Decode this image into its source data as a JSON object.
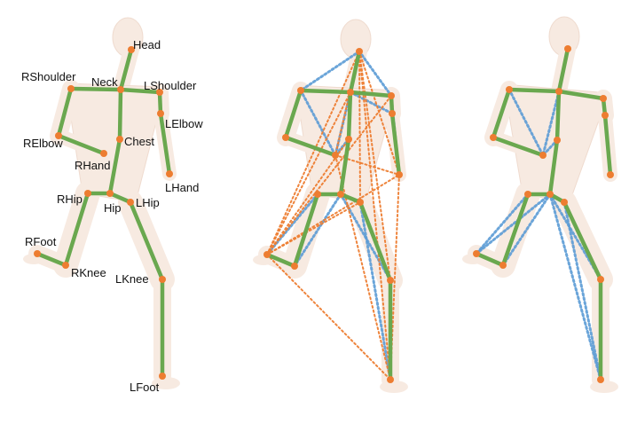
{
  "colors": {
    "bone": "#6aa84f",
    "joint": "#ed7d31",
    "edge_global": "#ed7d31",
    "edge_local": "#5b9bd5",
    "body": "#f1d9c9",
    "body_shade": "#e3bea8"
  },
  "labels": {
    "head": "Head",
    "neck": "Neck",
    "rshoulder": "RShoulder",
    "lshoulder": "LShoulder",
    "relbow": "RElbow",
    "lelbow": "LElbow",
    "chest": "Chest",
    "rhand": "RHand",
    "lhand": "LHand",
    "rhip": "RHip",
    "hip": "Hip",
    "lhip": "LHip",
    "rfoot": "RFoot",
    "rknee": "RKnee",
    "lknee": "LKnee",
    "lfoot": "LFoot"
  }
}
